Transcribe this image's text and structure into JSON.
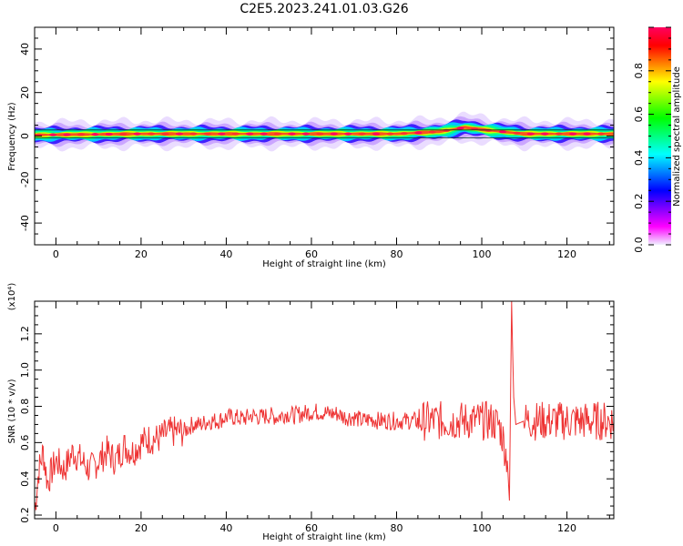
{
  "title": "C2E5.2023.241.01.03.G26",
  "chart_data": [
    {
      "type": "heatmap",
      "xlabel": "Height of straight line (km)",
      "ylabel": "Frequency (Hz)",
      "xlim": [
        -5,
        131
      ],
      "ylim": [
        -50,
        50
      ],
      "xticks": [
        0,
        20,
        40,
        60,
        80,
        100,
        120
      ],
      "yticks": [
        40,
        20,
        0,
        -20,
        -40
      ],
      "band_center_hz": [
        {
          "x": -5,
          "f": 0.5
        },
        {
          "x": 20,
          "f": 1.0
        },
        {
          "x": 40,
          "f": 1.0
        },
        {
          "x": 70,
          "f": 1.0
        },
        {
          "x": 80,
          "f": 1.0
        },
        {
          "x": 90,
          "f": 2.0
        },
        {
          "x": 96,
          "f": 4.0
        },
        {
          "x": 102,
          "f": 2.5
        },
        {
          "x": 110,
          "f": 1.0
        },
        {
          "x": 131,
          "f": 1.0
        }
      ],
      "colorbar": {
        "label": "Normalized spectral amplitude",
        "range": [
          0,
          1
        ],
        "ticks": [
          0.0,
          0.2,
          0.4,
          0.6,
          0.8
        ],
        "colormap": [
          "#f0f0ff",
          "#ff00ff",
          "#8000ff",
          "#0000ff",
          "#0080ff",
          "#00ffff",
          "#00ff80",
          "#00ff00",
          "#80ff00",
          "#ffff00",
          "#ff8000",
          "#ff0000",
          "#ff0060"
        ]
      }
    },
    {
      "type": "line",
      "xlabel": "Height of straight line (km)",
      "ylabel": "SNR (10 * v/v)",
      "scale_label": "(x10⁴)",
      "xlim": [
        -5,
        131
      ],
      "ylim": [
        0.18,
        1.38
      ],
      "xticks": [
        0,
        20,
        40,
        60,
        80,
        100,
        120
      ],
      "yticks": [
        0.2,
        0.4,
        0.6,
        0.8,
        1.0,
        1.2
      ],
      "color": "#ee3333",
      "series": [
        {
          "x": [
            -5,
            -4,
            -3,
            -2,
            0,
            2,
            4,
            6,
            8,
            10,
            12,
            14,
            16,
            18,
            20,
            22,
            24,
            26,
            28,
            30,
            32,
            34,
            36,
            38,
            40,
            42,
            44,
            46,
            48,
            50,
            52,
            54,
            56,
            58,
            60,
            62,
            64,
            66,
            68,
            70,
            72,
            74,
            76,
            78,
            80,
            82,
            84,
            86,
            88,
            90,
            92,
            94,
            96,
            98,
            100,
            102,
            104,
            105,
            106,
            106.5,
            107,
            107.5,
            108,
            110,
            112,
            114,
            116,
            118,
            120,
            122,
            124,
            126,
            128,
            130,
            131
          ],
          "values": [
            0.22,
            0.45,
            0.55,
            0.38,
            0.5,
            0.45,
            0.55,
            0.5,
            0.45,
            0.5,
            0.55,
            0.5,
            0.58,
            0.55,
            0.6,
            0.62,
            0.62,
            0.65,
            0.66,
            0.66,
            0.7,
            0.7,
            0.72,
            0.72,
            0.74,
            0.74,
            0.73,
            0.75,
            0.74,
            0.75,
            0.74,
            0.76,
            0.75,
            0.76,
            0.77,
            0.77,
            0.76,
            0.76,
            0.74,
            0.74,
            0.72,
            0.73,
            0.72,
            0.72,
            0.72,
            0.72,
            0.72,
            0.72,
            0.72,
            0.72,
            0.72,
            0.72,
            0.72,
            0.72,
            0.72,
            0.72,
            0.7,
            0.62,
            0.5,
            0.28,
            1.38,
            0.85,
            0.7,
            0.72,
            0.72,
            0.72,
            0.72,
            0.72,
            0.72,
            0.72,
            0.72,
            0.72,
            0.72,
            0.72,
            0.72
          ]
        }
      ]
    }
  ]
}
